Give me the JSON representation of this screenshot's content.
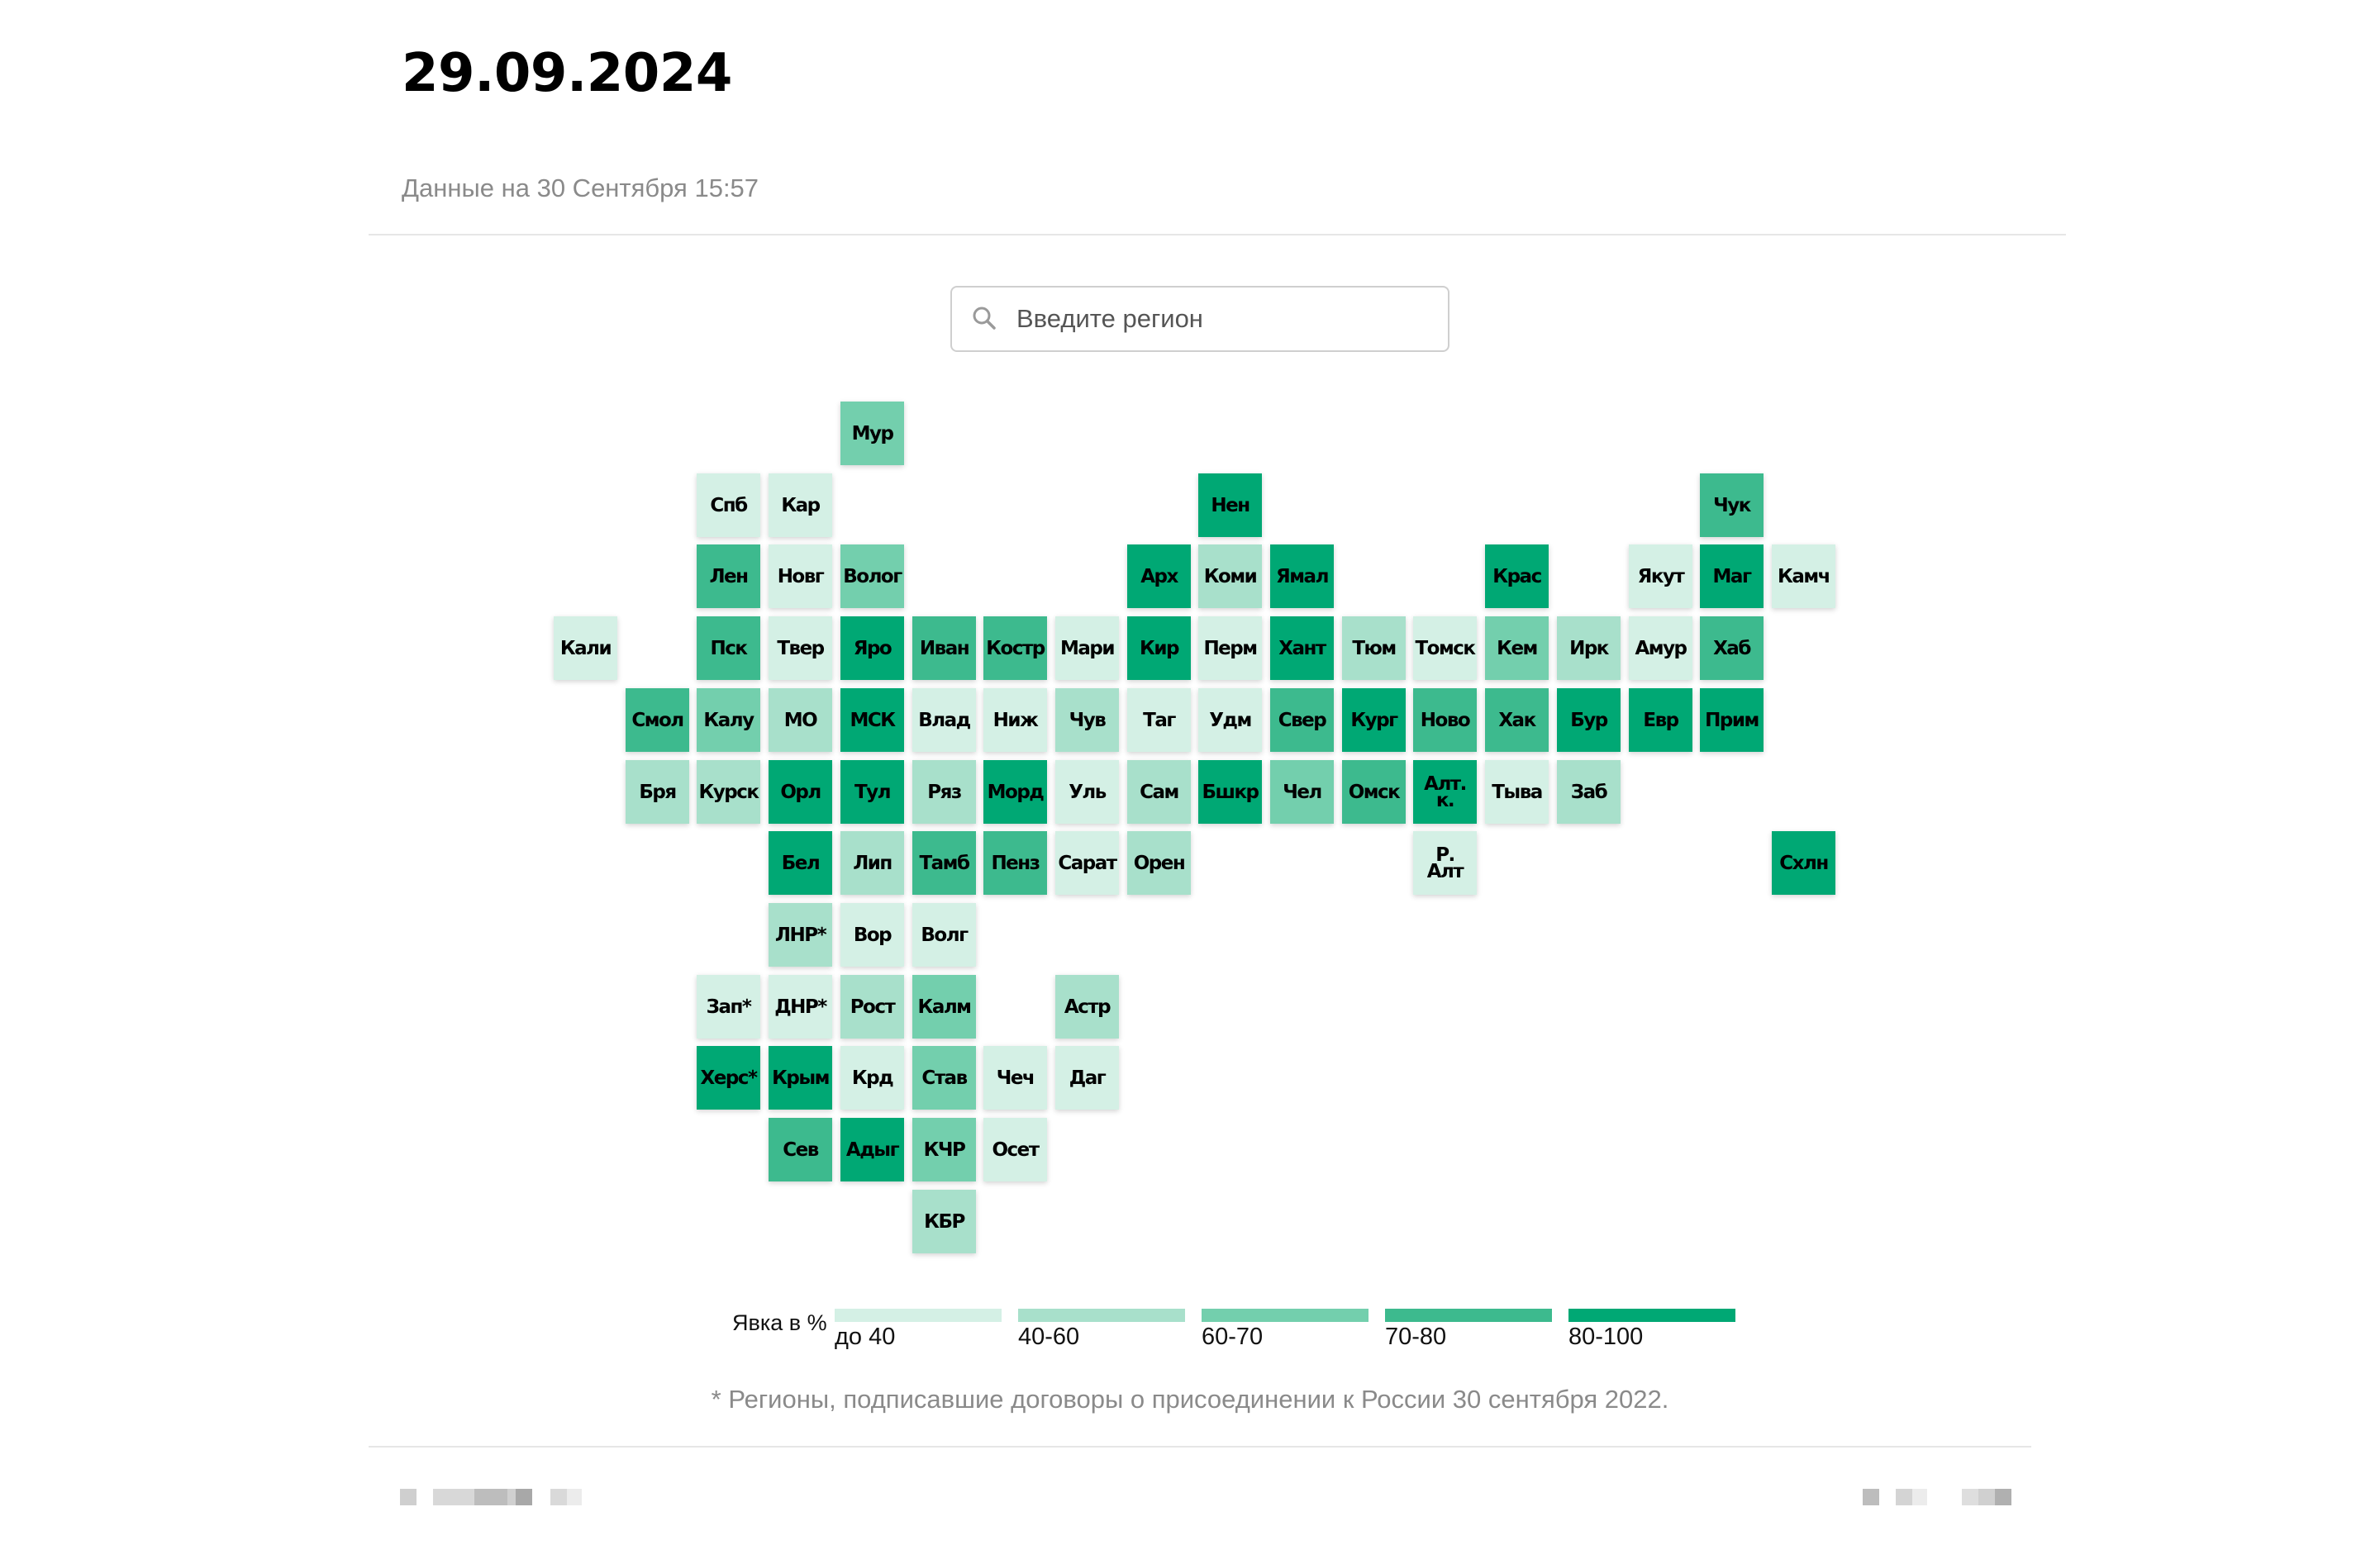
{
  "header": {
    "title": "29.09.2024",
    "updated": "Данные на 30 Сентября 15:57"
  },
  "search": {
    "placeholder": "Введите регион",
    "icon": "search-icon"
  },
  "colors": {
    "1": "#d4f0e5",
    "2": "#a8e0cb",
    "3": "#73cfad",
    "4": "#3dba8e",
    "5": "#00a874"
  },
  "regions": [
    {
      "code": "Мур",
      "col": 4,
      "row": 0,
      "level": 3
    },
    {
      "code": "Спб",
      "col": 2,
      "row": 1,
      "level": 1
    },
    {
      "code": "Кар",
      "col": 3,
      "row": 1,
      "level": 1
    },
    {
      "code": "Нен",
      "col": 9,
      "row": 1,
      "level": 5
    },
    {
      "code": "Чук",
      "col": 16,
      "row": 1,
      "level": 4
    },
    {
      "code": "Лен",
      "col": 2,
      "row": 2,
      "level": 4
    },
    {
      "code": "Новг",
      "col": 3,
      "row": 2,
      "level": 1
    },
    {
      "code": "Волог",
      "col": 4,
      "row": 2,
      "level": 3
    },
    {
      "code": "Арх",
      "col": 8,
      "row": 2,
      "level": 5
    },
    {
      "code": "Коми",
      "col": 9,
      "row": 2,
      "level": 2
    },
    {
      "code": "Ямал",
      "col": 10,
      "row": 2,
      "level": 5
    },
    {
      "code": "Крас",
      "col": 13,
      "row": 2,
      "level": 5
    },
    {
      "code": "Якут",
      "col": 15,
      "row": 2,
      "level": 1
    },
    {
      "code": "Маг",
      "col": 16,
      "row": 2,
      "level": 5
    },
    {
      "code": "Камч",
      "col": 17,
      "row": 2,
      "level": 1
    },
    {
      "code": "Кали",
      "col": 0,
      "row": 3,
      "level": 1
    },
    {
      "code": "Пск",
      "col": 2,
      "row": 3,
      "level": 4
    },
    {
      "code": "Твер",
      "col": 3,
      "row": 3,
      "level": 1
    },
    {
      "code": "Яро",
      "col": 4,
      "row": 3,
      "level": 5
    },
    {
      "code": "Иван",
      "col": 5,
      "row": 3,
      "level": 4
    },
    {
      "code": "Костр",
      "col": 6,
      "row": 3,
      "level": 4
    },
    {
      "code": "Мари",
      "col": 7,
      "row": 3,
      "level": 1
    },
    {
      "code": "Кир",
      "col": 8,
      "row": 3,
      "level": 5
    },
    {
      "code": "Перм",
      "col": 9,
      "row": 3,
      "level": 1
    },
    {
      "code": "Хант",
      "col": 10,
      "row": 3,
      "level": 5
    },
    {
      "code": "Тюм",
      "col": 11,
      "row": 3,
      "level": 2
    },
    {
      "code": "Томск",
      "col": 12,
      "row": 3,
      "level": 1
    },
    {
      "code": "Кем",
      "col": 13,
      "row": 3,
      "level": 3
    },
    {
      "code": "Ирк",
      "col": 14,
      "row": 3,
      "level": 2
    },
    {
      "code": "Амур",
      "col": 15,
      "row": 3,
      "level": 1
    },
    {
      "code": "Хаб",
      "col": 16,
      "row": 3,
      "level": 4
    },
    {
      "code": "Смол",
      "col": 1,
      "row": 4,
      "level": 4
    },
    {
      "code": "Калу",
      "col": 2,
      "row": 4,
      "level": 3
    },
    {
      "code": "МО",
      "col": 3,
      "row": 4,
      "level": 2
    },
    {
      "code": "МСК",
      "col": 4,
      "row": 4,
      "level": 5
    },
    {
      "code": "Влад",
      "col": 5,
      "row": 4,
      "level": 1
    },
    {
      "code": "Ниж",
      "col": 6,
      "row": 4,
      "level": 1
    },
    {
      "code": "Чув",
      "col": 7,
      "row": 4,
      "level": 2
    },
    {
      "code": "Таг",
      "col": 8,
      "row": 4,
      "level": 1
    },
    {
      "code": "Удм",
      "col": 9,
      "row": 4,
      "level": 1
    },
    {
      "code": "Свер",
      "col": 10,
      "row": 4,
      "level": 4
    },
    {
      "code": "Кург",
      "col": 11,
      "row": 4,
      "level": 5
    },
    {
      "code": "Ново",
      "col": 12,
      "row": 4,
      "level": 4
    },
    {
      "code": "Хак",
      "col": 13,
      "row": 4,
      "level": 4
    },
    {
      "code": "Бур",
      "col": 14,
      "row": 4,
      "level": 5
    },
    {
      "code": "Евр",
      "col": 15,
      "row": 4,
      "level": 5
    },
    {
      "code": "Прим",
      "col": 16,
      "row": 4,
      "level": 5
    },
    {
      "code": "Бря",
      "col": 1,
      "row": 5,
      "level": 2
    },
    {
      "code": "Курск",
      "col": 2,
      "row": 5,
      "level": 2
    },
    {
      "code": "Орл",
      "col": 3,
      "row": 5,
      "level": 5
    },
    {
      "code": "Тул",
      "col": 4,
      "row": 5,
      "level": 5
    },
    {
      "code": "Ряз",
      "col": 5,
      "row": 5,
      "level": 2
    },
    {
      "code": "Морд",
      "col": 6,
      "row": 5,
      "level": 5
    },
    {
      "code": "Уль",
      "col": 7,
      "row": 5,
      "level": 1
    },
    {
      "code": "Сам",
      "col": 8,
      "row": 5,
      "level": 2
    },
    {
      "code": "Бшкр",
      "col": 9,
      "row": 5,
      "level": 5
    },
    {
      "code": "Чел",
      "col": 10,
      "row": 5,
      "level": 3
    },
    {
      "code": "Омск",
      "col": 11,
      "row": 5,
      "level": 4
    },
    {
      "code": "Алт.\nк.",
      "col": 12,
      "row": 5,
      "level": 5
    },
    {
      "code": "Тыва",
      "col": 13,
      "row": 5,
      "level": 1
    },
    {
      "code": "Заб",
      "col": 14,
      "row": 5,
      "level": 2
    },
    {
      "code": "Бел",
      "col": 3,
      "row": 6,
      "level": 5
    },
    {
      "code": "Лип",
      "col": 4,
      "row": 6,
      "level": 2
    },
    {
      "code": "Тамб",
      "col": 5,
      "row": 6,
      "level": 4
    },
    {
      "code": "Пенз",
      "col": 6,
      "row": 6,
      "level": 4
    },
    {
      "code": "Сарат",
      "col": 7,
      "row": 6,
      "level": 1
    },
    {
      "code": "Орен",
      "col": 8,
      "row": 6,
      "level": 2
    },
    {
      "code": "Р.\nАлт",
      "col": 12,
      "row": 6,
      "level": 1
    },
    {
      "code": "Схлн",
      "col": 17,
      "row": 6,
      "level": 5
    },
    {
      "code": "ЛНР*",
      "col": 3,
      "row": 7,
      "level": 2
    },
    {
      "code": "Вор",
      "col": 4,
      "row": 7,
      "level": 1
    },
    {
      "code": "Волг",
      "col": 5,
      "row": 7,
      "level": 1
    },
    {
      "code": "Зап*",
      "col": 2,
      "row": 8,
      "level": 1
    },
    {
      "code": "ДНР*",
      "col": 3,
      "row": 8,
      "level": 1
    },
    {
      "code": "Рост",
      "col": 4,
      "row": 8,
      "level": 2
    },
    {
      "code": "Калм",
      "col": 5,
      "row": 8,
      "level": 3
    },
    {
      "code": "Астр",
      "col": 7,
      "row": 8,
      "level": 2
    },
    {
      "code": "Херс*",
      "col": 2,
      "row": 9,
      "level": 5
    },
    {
      "code": "Крым",
      "col": 3,
      "row": 9,
      "level": 5
    },
    {
      "code": "Крд",
      "col": 4,
      "row": 9,
      "level": 1
    },
    {
      "code": "Став",
      "col": 5,
      "row": 9,
      "level": 3
    },
    {
      "code": "Чеч",
      "col": 6,
      "row": 9,
      "level": 1
    },
    {
      "code": "Даг",
      "col": 7,
      "row": 9,
      "level": 1
    },
    {
      "code": "Сев",
      "col": 3,
      "row": 10,
      "level": 4
    },
    {
      "code": "Адыг",
      "col": 4,
      "row": 10,
      "level": 5
    },
    {
      "code": "КЧР",
      "col": 5,
      "row": 10,
      "level": 3
    },
    {
      "code": "Осет",
      "col": 6,
      "row": 10,
      "level": 1
    },
    {
      "code": "КБР",
      "col": 5,
      "row": 11,
      "level": 2
    }
  ],
  "legend": {
    "title": "Явка в %",
    "items": [
      {
        "label": "до 40",
        "level": 1
      },
      {
        "label": "40-60",
        "level": 2
      },
      {
        "label": "60-70",
        "level": 3
      },
      {
        "label": "70-80",
        "level": 4
      },
      {
        "label": "80-100",
        "level": 5
      }
    ]
  },
  "footnote": "* Регионы, подписавшие договоры о присоединении к России 30 сентября 2022."
}
